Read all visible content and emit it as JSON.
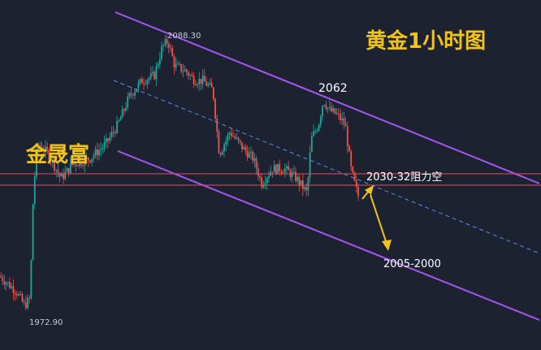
{
  "title": "黄金1小时图",
  "watermark": "金晟富",
  "labels": {
    "high": "2088.30",
    "low": "1972.90",
    "peak2": "2062",
    "resistance": "2030-32阻力空",
    "target": "2005-2000"
  },
  "chart_data": {
    "type": "candlestick",
    "instrument": "gold",
    "timeframe": "1H",
    "y_extremes": {
      "high": 2088.3,
      "low": 1972.9
    },
    "resistance_zone": [
      2030,
      2032
    ],
    "target_zone": [
      2005,
      2000
    ],
    "swing_points": [
      {
        "label": "2088.30",
        "price": 2088.3,
        "type": "high"
      },
      {
        "label": "2062",
        "price": 2062,
        "type": "lower high"
      },
      {
        "label": "1972.90",
        "price": 1972.9,
        "type": "low"
      }
    ],
    "channel": "descending",
    "colors": {
      "up": "#26a69a",
      "down": "#ef5350",
      "channel": "#a855f7",
      "midline": "#5b8def",
      "resistance": "#e05060",
      "arrow": "#f0c419",
      "text": "#f0c419",
      "label": "#ffffff",
      "background": "#1c2230"
    }
  }
}
